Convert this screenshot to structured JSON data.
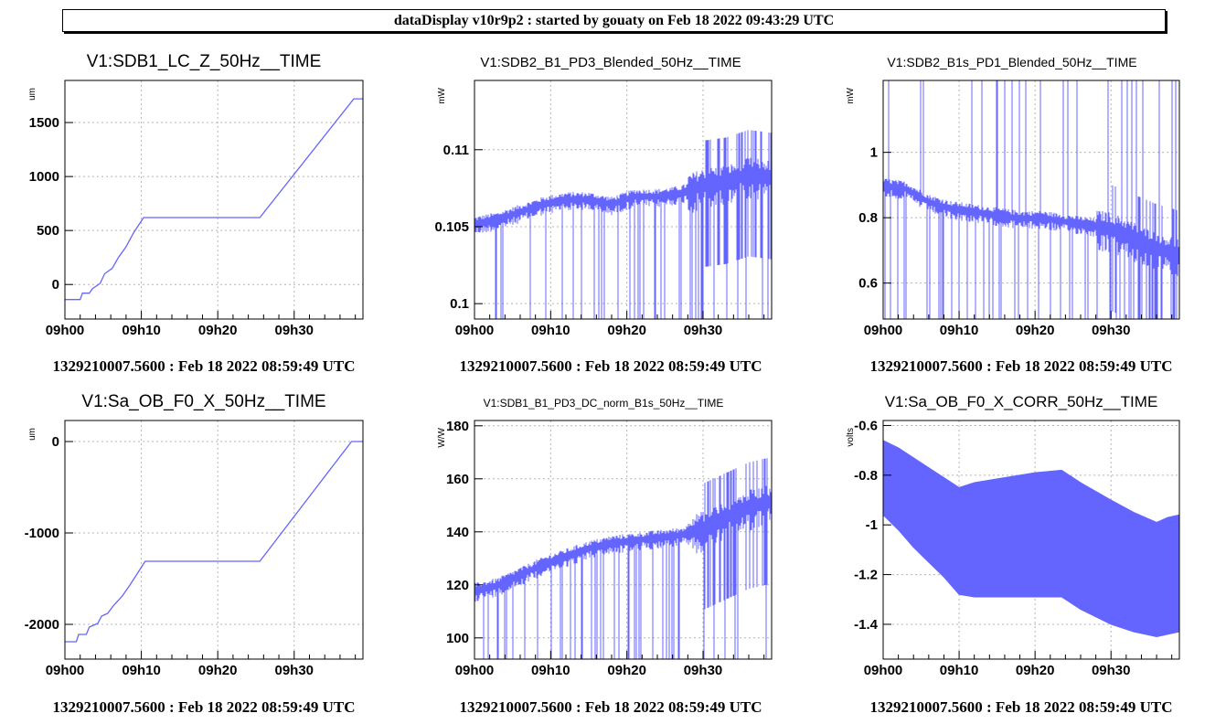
{
  "header": {
    "title": "dataDisplay v10r9p2 : started by gouaty on Feb 18 2022 09:43:29 UTC"
  },
  "colors": {
    "trace": "#6464ff",
    "grid": "#b4b4b4",
    "axis": "#000000"
  },
  "chart_data": [
    {
      "type": "line",
      "title": "V1:SDB1_LC_Z_50Hz__TIME",
      "ylabel": "um",
      "footer": "1329210007.5600 : Feb 18 2022 08:59:49 UTC",
      "xlim": [
        0,
        39
      ],
      "ylim": [
        -320,
        1890
      ],
      "x_ticks": [
        0,
        10,
        20,
        30
      ],
      "x_tick_labels": [
        "09h00",
        "09h10",
        "09h20",
        "09h30"
      ],
      "y_ticks": [
        0,
        500,
        1000,
        1500
      ],
      "y_tick_labels": [
        "0",
        "500",
        "1000",
        "1500"
      ],
      "grid": true,
      "series": [
        {
          "x": [
            0,
            2,
            2.3,
            3.2,
            3.6,
            4.6,
            5.2,
            6.2,
            7,
            8,
            9,
            10.3,
            25.5,
            37.8,
            39
          ],
          "y": [
            -140,
            -140,
            -80,
            -80,
            -40,
            10,
            100,
            150,
            250,
            350,
            480,
            620,
            620,
            1720,
            1720
          ]
        }
      ]
    },
    {
      "type": "line",
      "title": "V1:SDB2_B1_PD3_Blended_50Hz__TIME",
      "ylabel": "mW",
      "footer": "1329210007.5600 : Feb 18 2022 08:59:49 UTC",
      "xlim": [
        0,
        39
      ],
      "ylim": [
        0.099,
        0.1145
      ],
      "x_ticks": [
        0,
        10,
        20,
        30
      ],
      "x_tick_labels": [
        "09h00",
        "09h10",
        "09h20",
        "09h30"
      ],
      "y_ticks": [
        0.1,
        0.105,
        0.11
      ],
      "y_tick_labels": [
        "0.1",
        "0.105",
        "0.11"
      ],
      "grid": true,
      "series": [
        {
          "x": [
            0,
            3,
            6,
            9,
            12,
            15,
            18,
            21,
            24,
            27,
            30,
            33,
            36,
            39
          ],
          "y": [
            0.1052,
            0.1055,
            0.106,
            0.1065,
            0.1068,
            0.1068,
            0.1065,
            0.107,
            0.107,
            0.1072,
            0.1078,
            0.108,
            0.1085,
            0.1083
          ]
        }
      ]
    },
    {
      "type": "line",
      "title": "V1:SDB2_B1s_PD1_Blended_50Hz__TIME",
      "ylabel": "mW",
      "footer": "1329210007.5600 : Feb 18 2022 08:59:49 UTC",
      "xlim": [
        0,
        39
      ],
      "ylim": [
        0.49,
        1.22
      ],
      "x_ticks": [
        0,
        10,
        20,
        30
      ],
      "x_tick_labels": [
        "09h00",
        "09h10",
        "09h20",
        "09h30"
      ],
      "y_ticks": [
        0.6,
        0.8,
        1
      ],
      "y_tick_labels": [
        "0.6",
        "0.8",
        "1"
      ],
      "grid": true,
      "series": [
        {
          "x": [
            0,
            3,
            6,
            9,
            12,
            15,
            18,
            21,
            24,
            27,
            30,
            33,
            36,
            39
          ],
          "y": [
            0.9,
            0.89,
            0.85,
            0.83,
            0.82,
            0.81,
            0.8,
            0.8,
            0.79,
            0.78,
            0.77,
            0.74,
            0.71,
            0.69
          ]
        }
      ]
    },
    {
      "type": "line",
      "title": "V1:Sa_OB_F0_X_50Hz__TIME",
      "ylabel": "um",
      "footer": "1329210007.5600 : Feb 18 2022 08:59:49 UTC",
      "xlim": [
        0,
        39
      ],
      "ylim": [
        -2380,
        230
      ],
      "x_ticks": [
        0,
        10,
        20,
        30
      ],
      "x_tick_labels": [
        "09h00",
        "09h10",
        "09h20",
        "09h30"
      ],
      "y_ticks": [
        -2000,
        -1000,
        0
      ],
      "y_tick_labels": [
        "-2000",
        "-1000",
        "0"
      ],
      "grid": true,
      "series": [
        {
          "x": [
            0,
            1.5,
            1.8,
            2.8,
            3.2,
            4.3,
            4.8,
            5.6,
            6.3,
            7.5,
            8.5,
            10.5,
            25.5,
            37.5,
            39
          ],
          "y": [
            -2190,
            -2190,
            -2110,
            -2110,
            -2030,
            -1990,
            -1910,
            -1880,
            -1800,
            -1690,
            -1570,
            -1310,
            -1310,
            0,
            0
          ]
        }
      ]
    },
    {
      "type": "line",
      "title": "V1:SDB1_B1_PD3_DC_norm_B1s_50Hz__TIME",
      "ylabel": "W/W",
      "footer": "1329210007.5600 : Feb 18 2022 08:59:49 UTC",
      "xlim": [
        0,
        39
      ],
      "ylim": [
        92,
        182
      ],
      "x_ticks": [
        0,
        10,
        20,
        30
      ],
      "x_tick_labels": [
        "09h00",
        "09h10",
        "09h20",
        "09h30"
      ],
      "y_ticks": [
        100,
        120,
        140,
        160,
        180
      ],
      "y_tick_labels": [
        "100",
        "120",
        "140",
        "160",
        "180"
      ],
      "grid": true,
      "series": [
        {
          "x": [
            0,
            3,
            6,
            9,
            12,
            15,
            18,
            21,
            24,
            27,
            30,
            33,
            36,
            39
          ],
          "y": [
            118,
            120,
            124,
            128,
            131,
            134,
            136,
            137,
            138,
            139,
            142,
            146,
            150,
            152
          ]
        }
      ]
    },
    {
      "type": "area",
      "title": "V1:Sa_OB_F0_X_CORR_50Hz__TIME",
      "ylabel": "volts",
      "footer": "1329210007.5600 : Feb 18 2022 08:59:49 UTC",
      "xlim": [
        0,
        39
      ],
      "ylim": [
        -1.54,
        -0.58
      ],
      "x_ticks": [
        0,
        10,
        20,
        30
      ],
      "x_tick_labels": [
        "09h00",
        "09h10",
        "09h20",
        "09h30"
      ],
      "y_ticks": [
        -1.4,
        -1.2,
        -1,
        -0.8,
        -0.6
      ],
      "y_tick_labels": [
        "-1.4",
        "-1.2",
        "-1",
        "-0.8",
        "-0.6"
      ],
      "grid": true,
      "series": [
        {
          "x": [
            0,
            2,
            4,
            6,
            8,
            10,
            12,
            16,
            20,
            23.5,
            26,
            30,
            33,
            36,
            37.5,
            39
          ],
          "upper": [
            -0.66,
            -0.69,
            -0.73,
            -0.77,
            -0.81,
            -0.85,
            -0.83,
            -0.81,
            -0.79,
            -0.78,
            -0.83,
            -0.9,
            -0.95,
            -0.99,
            -0.97,
            -0.96
          ],
          "lower": [
            -0.96,
            -1.02,
            -1.09,
            -1.15,
            -1.21,
            -1.28,
            -1.29,
            -1.29,
            -1.29,
            -1.29,
            -1.34,
            -1.4,
            -1.43,
            -1.45,
            -1.44,
            -1.43
          ]
        }
      ]
    }
  ]
}
